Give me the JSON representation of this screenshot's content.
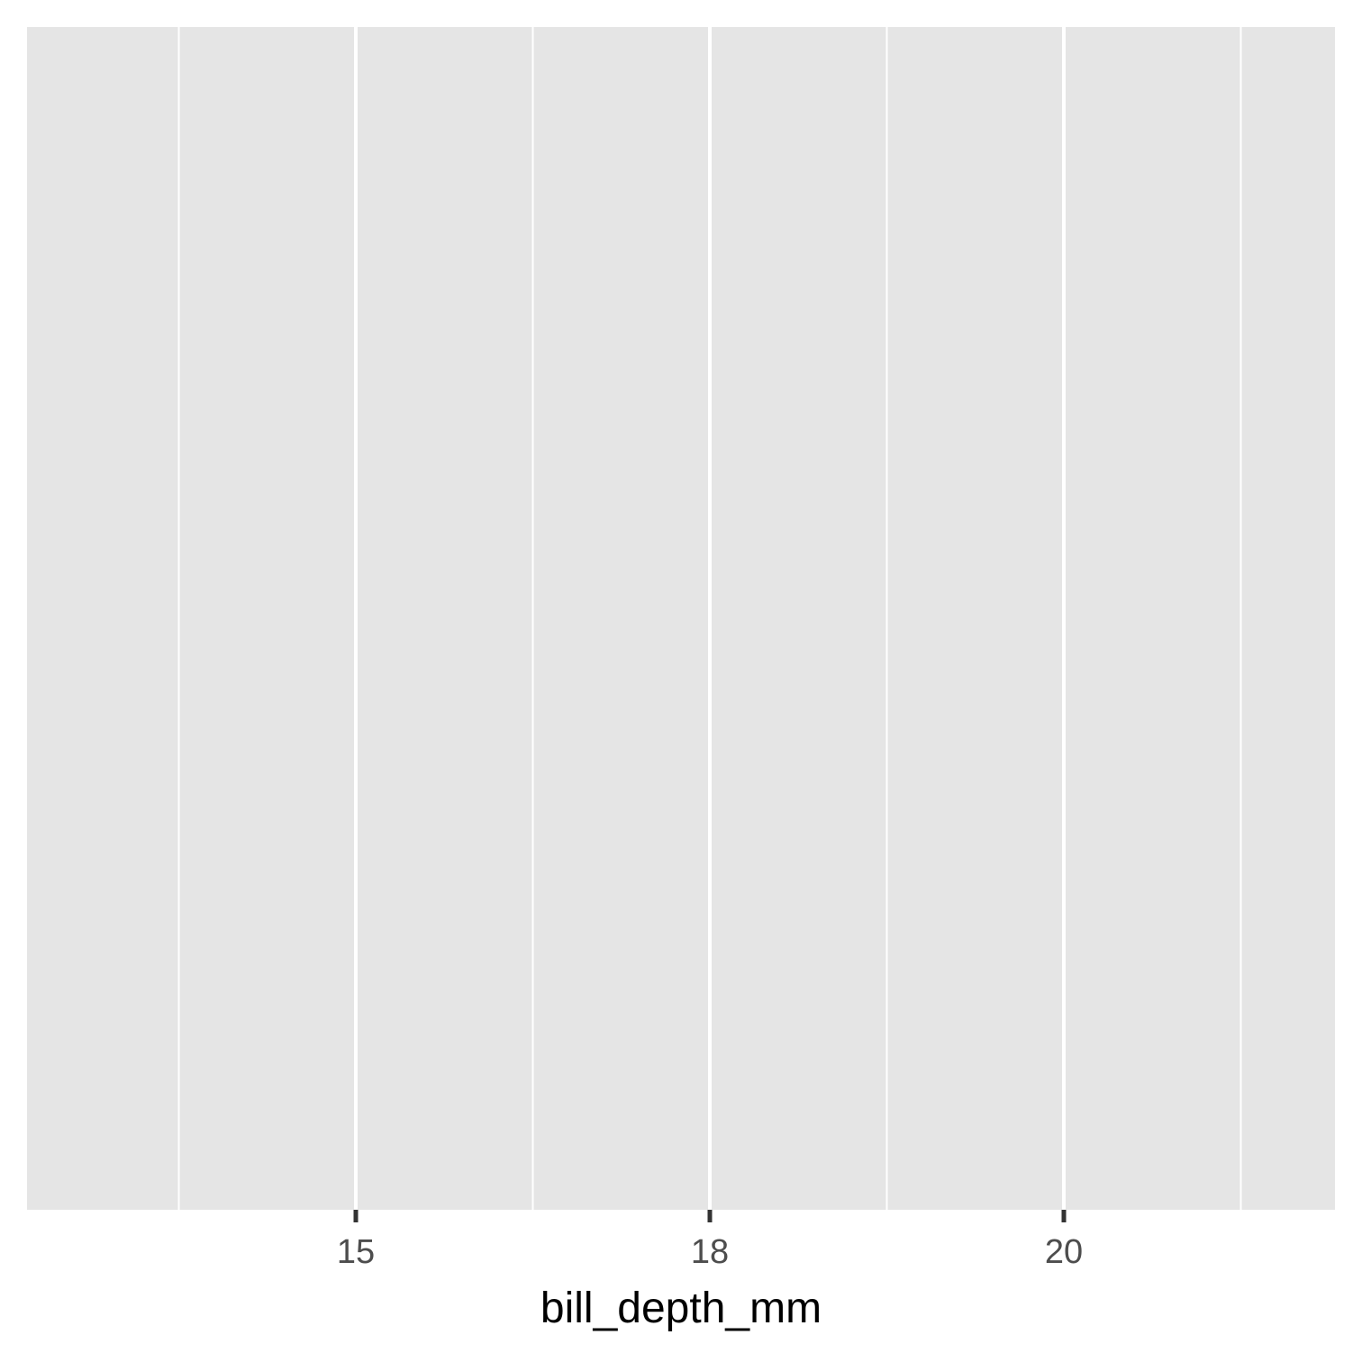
{
  "chart_data": {
    "type": "scatter",
    "title": "",
    "xlabel": "bill_depth_mm",
    "ylabel": "",
    "x_scale": "categorical",
    "categories": [
      "15",
      "18",
      "20"
    ],
    "x_ticks": [
      "15",
      "18",
      "20"
    ],
    "series": [],
    "grid": true,
    "y_axis_shown": false,
    "legend": "none",
    "colors": {
      "panel_background": "#e5e5e5",
      "grid_line": "#ffffff",
      "tick_mark": "#333333",
      "tick_label": "#4d4d4d",
      "axis_title": "#000000"
    }
  }
}
